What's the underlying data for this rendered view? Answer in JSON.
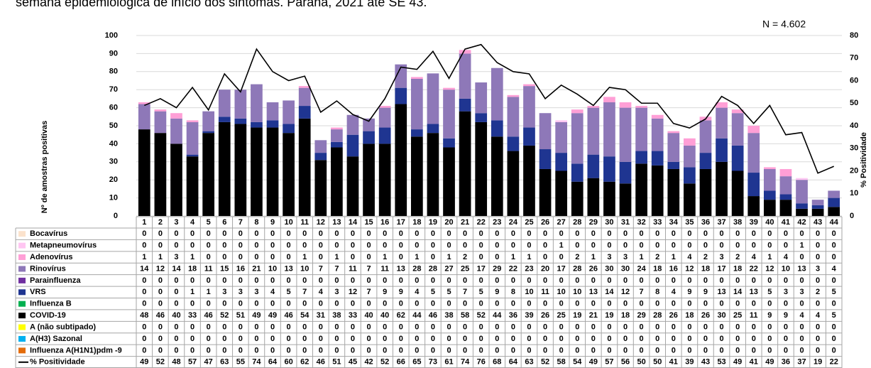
{
  "chart_data": {
    "type": "bar",
    "stacked": true,
    "title": "semana epidemiológica de início dos sintomas. Paraná, 2021 até SE 43.",
    "annotation": "N = 4.602",
    "y_label": "Nº de amostras positivas",
    "y2_label": "% Positividade",
    "categories": [
      "1",
      "2",
      "3",
      "4",
      "5",
      "6",
      "7",
      "8",
      "9",
      "10",
      "11",
      "12",
      "13",
      "14",
      "15",
      "16",
      "17",
      "18",
      "19",
      "20",
      "21",
      "22",
      "23",
      "24",
      "25",
      "26",
      "27",
      "28",
      "29",
      "30",
      "31",
      "32",
      "33",
      "34",
      "35",
      "36",
      "37",
      "38",
      "39",
      "40",
      "41",
      "42",
      "43",
      "44"
    ],
    "ylim": [
      0,
      100
    ],
    "yticks": [
      0,
      10,
      20,
      30,
      40,
      50,
      60,
      70,
      80,
      90,
      100
    ],
    "y2lim": [
      0,
      80
    ],
    "y2ticks": [
      0,
      10,
      20,
      30,
      40,
      50,
      60,
      70,
      80
    ],
    "grid": true,
    "series": [
      {
        "name": "Bocavírus",
        "type": "bar",
        "color": "#fbe2cc",
        "values": [
          0,
          0,
          0,
          0,
          0,
          0,
          0,
          0,
          0,
          0,
          0,
          0,
          0,
          0,
          0,
          0,
          0,
          0,
          0,
          0,
          0,
          0,
          0,
          0,
          0,
          0,
          0,
          0,
          0,
          0,
          0,
          0,
          0,
          0,
          0,
          0,
          0,
          0,
          0,
          0,
          0,
          0,
          0,
          0
        ]
      },
      {
        "name": "Metapneumovírus",
        "type": "bar",
        "color": "#ffc6f2",
        "values": [
          0,
          0,
          0,
          0,
          0,
          0,
          0,
          0,
          0,
          0,
          0,
          0,
          0,
          0,
          0,
          0,
          0,
          0,
          0,
          0,
          0,
          0,
          0,
          0,
          0,
          0,
          1,
          0,
          0,
          0,
          0,
          0,
          0,
          0,
          0,
          0,
          0,
          0,
          0,
          0,
          0,
          1,
          0,
          0
        ]
      },
      {
        "name": "Adenovírus",
        "type": "bar",
        "color": "#ff9fd6",
        "values": [
          1,
          1,
          3,
          1,
          0,
          0,
          0,
          0,
          0,
          0,
          1,
          0,
          1,
          0,
          0,
          1,
          0,
          1,
          0,
          1,
          2,
          0,
          0,
          1,
          1,
          0,
          0,
          2,
          1,
          3,
          3,
          1,
          2,
          1,
          4,
          2,
          3,
          2,
          4,
          1,
          4,
          0,
          0,
          0
        ]
      },
      {
        "name": "Rinovírus",
        "type": "bar",
        "color": "#8e78b8",
        "values": [
          14,
          12,
          14,
          18,
          11,
          15,
          16,
          21,
          10,
          13,
          10,
          7,
          7,
          11,
          7,
          11,
          13,
          28,
          28,
          27,
          25,
          17,
          29,
          22,
          23,
          20,
          17,
          28,
          26,
          30,
          30,
          24,
          18,
          16,
          12,
          18,
          17,
          18,
          22,
          12,
          10,
          13,
          3,
          4
        ]
      },
      {
        "name": "Parainfluenza",
        "type": "bar",
        "color": "#7030a0",
        "values": [
          0,
          0,
          0,
          0,
          0,
          0,
          0,
          0,
          0,
          0,
          0,
          0,
          0,
          0,
          0,
          0,
          0,
          0,
          0,
          0,
          0,
          0,
          0,
          0,
          0,
          0,
          0,
          0,
          0,
          0,
          0,
          0,
          0,
          0,
          0,
          0,
          0,
          0,
          0,
          0,
          0,
          0,
          0,
          0
        ]
      },
      {
        "name": "VRS",
        "type": "bar",
        "color": "#1f3591",
        "values": [
          0,
          0,
          0,
          1,
          1,
          3,
          3,
          3,
          4,
          5,
          7,
          4,
          3,
          12,
          7,
          9,
          9,
          4,
          5,
          5,
          7,
          5,
          9,
          8,
          10,
          11,
          10,
          10,
          13,
          14,
          12,
          7,
          8,
          4,
          9,
          9,
          13,
          14,
          13,
          5,
          3,
          3,
          2,
          5
        ]
      },
      {
        "name": "Influenza B",
        "type": "bar",
        "color": "#00b050",
        "values": [
          0,
          0,
          0,
          0,
          0,
          0,
          0,
          0,
          0,
          0,
          0,
          0,
          0,
          0,
          0,
          0,
          0,
          0,
          0,
          0,
          0,
          0,
          0,
          0,
          0,
          0,
          0,
          0,
          0,
          0,
          0,
          0,
          0,
          0,
          0,
          0,
          0,
          0,
          0,
          0,
          0,
          0,
          0,
          0
        ]
      },
      {
        "name": "COVID-19",
        "type": "bar",
        "color": "#000000",
        "values": [
          48,
          46,
          40,
          33,
          46,
          52,
          51,
          49,
          49,
          46,
          54,
          31,
          38,
          33,
          40,
          40,
          62,
          44,
          46,
          38,
          58,
          52,
          44,
          36,
          39,
          26,
          25,
          19,
          21,
          19,
          18,
          29,
          28,
          26,
          18,
          26,
          30,
          25,
          11,
          9,
          9,
          4,
          4,
          5
        ]
      },
      {
        "name": "A (não subtipado)",
        "type": "bar",
        "color": "#ffff00",
        "values": [
          0,
          0,
          0,
          0,
          0,
          0,
          0,
          0,
          0,
          0,
          0,
          0,
          0,
          0,
          0,
          0,
          0,
          0,
          0,
          0,
          0,
          0,
          0,
          0,
          0,
          0,
          0,
          0,
          0,
          0,
          0,
          0,
          0,
          0,
          0,
          0,
          0,
          0,
          0,
          0,
          0,
          0,
          0,
          0
        ]
      },
      {
        "name": "A(H3) Sazonal",
        "type": "bar",
        "color": "#00b0f0",
        "values": [
          0,
          0,
          0,
          0,
          0,
          0,
          0,
          0,
          0,
          0,
          0,
          0,
          0,
          0,
          0,
          0,
          0,
          0,
          0,
          0,
          0,
          0,
          0,
          0,
          0,
          0,
          0,
          0,
          0,
          0,
          0,
          0,
          0,
          0,
          0,
          0,
          0,
          0,
          0,
          0,
          0,
          0,
          0,
          0
        ]
      },
      {
        "name": "Influenza A(H1N1)pdm -9",
        "type": "bar",
        "color": "#e46c0a",
        "values": [
          0,
          0,
          0,
          0,
          0,
          0,
          0,
          0,
          0,
          0,
          0,
          0,
          0,
          0,
          0,
          0,
          0,
          0,
          0,
          0,
          0,
          0,
          0,
          0,
          0,
          0,
          0,
          0,
          0,
          0,
          0,
          0,
          0,
          0,
          0,
          0,
          0,
          0,
          0,
          0,
          0,
          0,
          0,
          0
        ]
      },
      {
        "name": "% Positividade",
        "type": "line",
        "axis": "y2",
        "color": "#000000",
        "values": [
          49,
          52,
          48,
          57,
          47,
          63,
          55,
          74,
          64,
          60,
          62,
          46,
          51,
          45,
          42,
          52,
          66,
          65,
          73,
          61,
          74,
          76,
          68,
          64,
          63,
          52,
          58,
          54,
          49,
          57,
          56,
          50,
          50,
          41,
          39,
          43,
          53,
          49,
          41,
          49,
          36,
          37,
          19,
          22
        ]
      }
    ]
  }
}
